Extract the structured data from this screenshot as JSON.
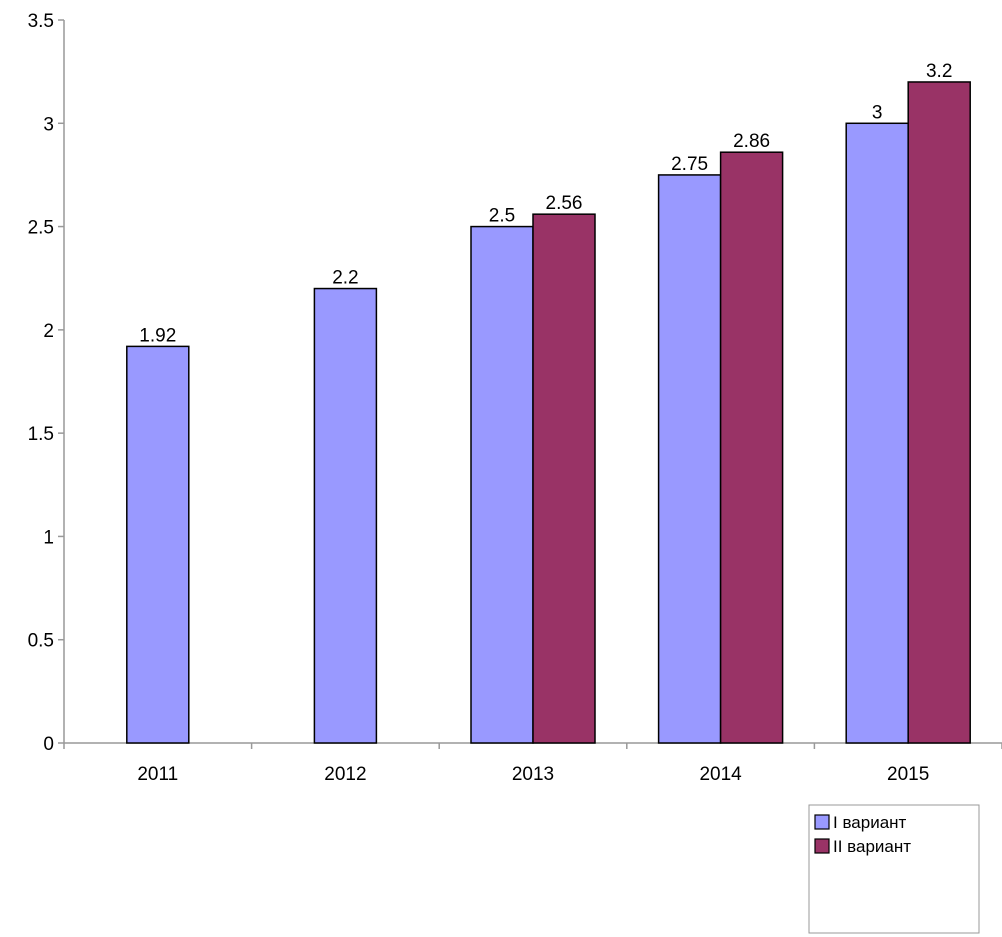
{
  "chart_data": {
    "type": "bar",
    "categories": [
      "2011",
      "2012",
      "2013",
      "2014",
      "2015"
    ],
    "series": [
      {
        "name": "I вариант",
        "color": "#9999ff",
        "values": [
          1.92,
          2.2,
          2.5,
          2.75,
          3
        ]
      },
      {
        "name": "II вариант",
        "color": "#993366",
        "values": [
          null,
          null,
          2.56,
          2.86,
          3.2
        ]
      }
    ],
    "data_labels": [
      [
        "1.92",
        "2.2",
        "2.5",
        "2.75",
        "3"
      ],
      [
        null,
        null,
        "2.56",
        "2.86",
        "3.2"
      ]
    ],
    "y_ticks": [
      "0",
      "0.5",
      "1",
      "1.5",
      "2",
      "2.5",
      "3",
      "3.5"
    ],
    "ylim": [
      0,
      3.5
    ],
    "title": "",
    "xlabel": "",
    "ylabel": "",
    "grid": false,
    "legend_position": "bottom-right"
  }
}
